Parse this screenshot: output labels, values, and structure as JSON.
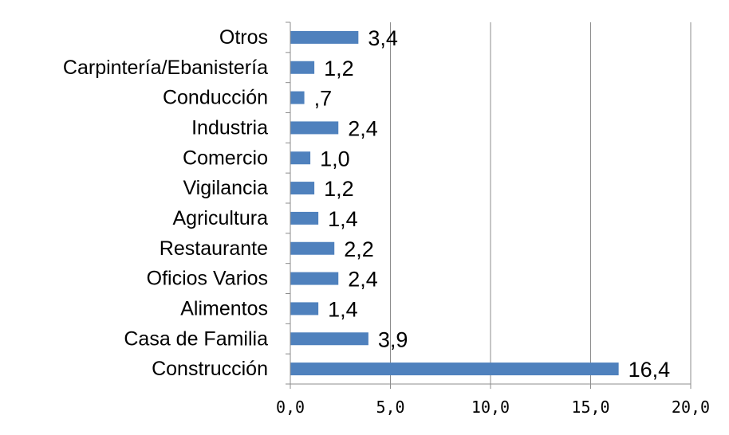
{
  "chart_data": {
    "type": "bar",
    "orientation": "horizontal",
    "title": "",
    "xlabel": "",
    "ylabel": "",
    "categories": [
      "Otros",
      "Carpintería/Ebanistería",
      "Conducción",
      "Industria",
      "Comercio",
      "Vigilancia",
      "Agricultura",
      "Restaurante",
      "Oficios Varios",
      "Alimentos",
      "Casa de Familia",
      "Construcción"
    ],
    "values": [
      3.4,
      1.2,
      0.7,
      2.4,
      1.0,
      1.2,
      1.4,
      2.2,
      2.4,
      1.4,
      3.9,
      16.4
    ],
    "value_labels": [
      "3,4",
      "1,2",
      ",7",
      "2,4",
      "1,0",
      "1,2",
      "1,4",
      "2,2",
      "2,4",
      "1,4",
      "3,9",
      "16,4"
    ],
    "xlim": [
      0,
      20
    ],
    "ticks": [
      0,
      5,
      10,
      15,
      20
    ],
    "tick_labels": [
      "0,0",
      "5,0",
      "10,0",
      "15,0",
      "20,0"
    ],
    "grid": "vertical",
    "legend": "none",
    "colors": {
      "bar": "#4f81bd",
      "grid": "#8c8c8c",
      "axis": "#8c8c8c"
    }
  }
}
